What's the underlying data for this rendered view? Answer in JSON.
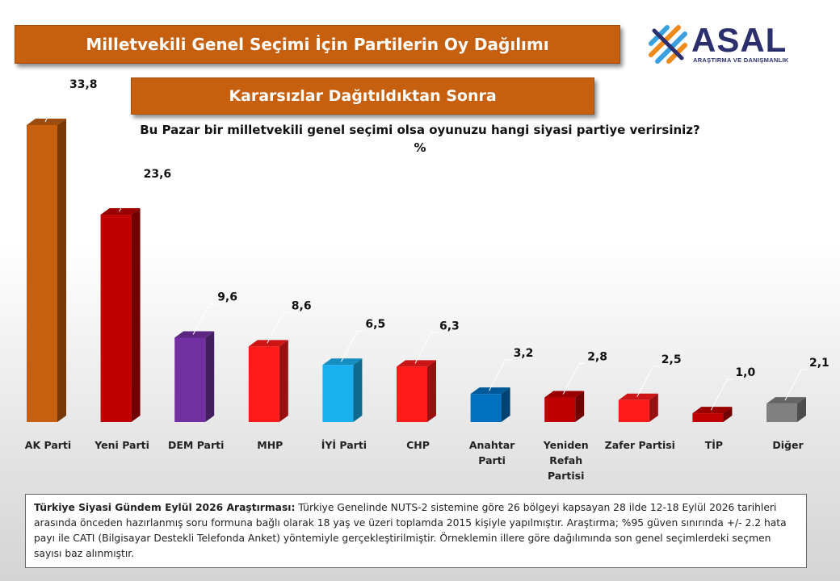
{
  "header": {
    "title": "Milletvekili Genel Seçimi İçin Partilerin Oy Dağılımı",
    "subtitle": "Kararsızlar Dağıtıldıktan Sonra"
  },
  "logo": {
    "name": "ASAL",
    "tagline": "ARAŞTIRMA VE DANIŞMANLIK",
    "colors": {
      "blue": "#2b2f6e",
      "orange": "#f08a1c",
      "lightblue": "#3aa0e0"
    }
  },
  "question": {
    "text": "Bu Pazar bir milletvekili genel seçimi olsa oyunuzu hangi siyasi partiye verirsiniz?",
    "unit": "%"
  },
  "chart_data": {
    "type": "bar",
    "categories": [
      "AK Parti",
      "Yeni Parti",
      "DEM Parti",
      "MHP",
      "İYİ Parti",
      "CHP",
      "Anahtar Parti",
      "Yeniden Refah Partisi",
      "Zafer Partisi",
      "TİP",
      "Diğer"
    ],
    "category_label_lines": [
      [
        "AK Parti"
      ],
      [
        "Yeni Parti"
      ],
      [
        "DEM Parti"
      ],
      [
        "MHP"
      ],
      [
        "İYİ Parti"
      ],
      [
        "CHP"
      ],
      [
        "Anahtar",
        "Parti"
      ],
      [
        "Yeniden",
        "Refah",
        "Partisi"
      ],
      [
        "Zafer Partisi"
      ],
      [
        "TİP"
      ],
      [
        "Diğer"
      ]
    ],
    "values": [
      33.8,
      23.6,
      9.6,
      8.6,
      6.5,
      6.3,
      3.2,
      2.8,
      2.5,
      1.0,
      2.1
    ],
    "value_labels": [
      "33,8",
      "23,6",
      "9,6",
      "8,6",
      "6,5",
      "6,3",
      "3,2",
      "2,8",
      "2,5",
      "1,0",
      "2,1"
    ],
    "colors": [
      "#c65f0e",
      "#c00000",
      "#7030a0",
      "#ff1a1a",
      "#1ab0f0",
      "#ff1a1a",
      "#0070c0",
      "#c00000",
      "#ff1a1a",
      "#c00000",
      "#808080"
    ],
    "ylim": [
      0,
      35
    ],
    "grid": false,
    "legend": "none"
  },
  "footnote": {
    "bold": "Türkiye Siyasi Gündem Eylül 2026 Araştırması:",
    "text": " Türkiye Genelinde  NUTS-2 sistemine göre 26 bölgeyi kapsayan 28 ilde 12-18 Eylül 2026 tarihleri arasında önceden hazırlanmış soru formuna bağlı olarak 18 yaş ve üzeri toplamda 2015 kişiyle yapılmıştır. Araştırma; %95 güven sınırında +/- 2.2 hata payı ile CATI (Bilgisayar Destekli Telefonda  Anket) yöntemiyle gerçekleştirilmiştir. Örneklemin illere göre dağılımında son genel seçimlerdeki seçmen sayısı baz alınmıştır."
  }
}
